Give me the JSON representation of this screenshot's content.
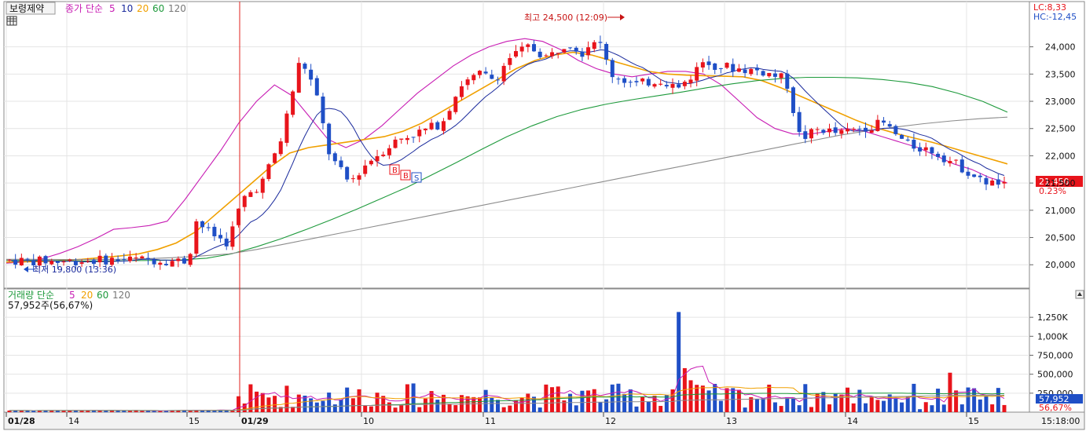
{
  "header": {
    "stock_name": "보령제약",
    "price_indicator_label": "종가 단순",
    "ma_periods": [
      "5",
      "10",
      "20",
      "60",
      "120"
    ],
    "lc_label": "LC:8,33",
    "hc_label": "HC:-12,45"
  },
  "price_panel": {
    "high_annotation": "최고 24,500 (12:09)",
    "low_annotation": "최저 19,800 (13:36)",
    "current_price": "21,450",
    "current_change": "0.23%",
    "buy_marker": "B",
    "sell_marker": "S",
    "y_ticks": [
      "24,000",
      "23,500",
      "23,000",
      "22,500",
      "22,000",
      "21,500",
      "21,000",
      "20,500",
      "20,000"
    ]
  },
  "volume_panel": {
    "indicator_label": "거래량 단순",
    "ma_periods": [
      "5",
      "20",
      "60",
      "120"
    ],
    "current_volume_text": "57,952주(56,67%)",
    "current_volume": "57,952",
    "current_pct": "56,67%",
    "y_ticks": [
      "1,250,000",
      "1,000,000",
      "750,000",
      "500,000",
      "250,000"
    ]
  },
  "x_axis": {
    "labels": [
      "01/28",
      "14",
      "15",
      "01/29",
      "10",
      "11",
      "12",
      "13",
      "14",
      "15"
    ],
    "time_readout": "15:18:00"
  },
  "colors": {
    "up": "#e8141b",
    "down": "#1f4fc6",
    "ma5": "#c81eb4",
    "ma10": "#1a2a9c",
    "ma20": "#f0a000",
    "ma60": "#1e9a3c",
    "ma120": "#8c8c8c",
    "divider": "#e0201e"
  },
  "chart_data": {
    "type": "candlestick",
    "price_axis": {
      "ylim": [
        19600,
        24600
      ]
    },
    "volume_axis": {
      "ylim": [
        0,
        1500000
      ]
    },
    "session_breaks": [
      "01/29"
    ],
    "ohlc_series_count": 166,
    "ma_lines": [
      {
        "name": "5",
        "values": [
          20030,
          20050,
          20110,
          20210,
          20330,
          20480,
          20650,
          20680,
          20720,
          20800,
          21200,
          21650,
          22100,
          22600,
          23000,
          23300,
          23100,
          22700,
          22300,
          22150,
          22300,
          22550,
          22850,
          23150,
          23400,
          23650,
          23850,
          24000,
          24100,
          24150,
          24100,
          23950,
          23750,
          23600,
          23500,
          23450,
          23500,
          23550,
          23550,
          23500,
          23300,
          23000,
          22700,
          22500,
          22400,
          22400,
          22450,
          22500,
          22450,
          22350,
          22250,
          22150,
          22000,
          21850,
          21750,
          21600,
          21500
        ]
      },
      {
        "name": "20",
        "values": [
          20050,
          20055,
          20060,
          20080,
          20100,
          20130,
          20160,
          20200,
          20280,
          20400,
          20600,
          20900,
          21200,
          21500,
          21800,
          22050,
          22150,
          22200,
          22250,
          22300,
          22350,
          22450,
          22600,
          22800,
          23000,
          23200,
          23400,
          23600,
          23750,
          23850,
          23900,
          23850,
          23750,
          23650,
          23550,
          23500,
          23480,
          23470,
          23460,
          23450,
          23380,
          23250,
          23100,
          22950,
          22800,
          22650,
          22520,
          22420,
          22330,
          22250,
          22150,
          22050,
          21950,
          21850
        ]
      },
      {
        "name": "60",
        "values": [
          20080,
          20080,
          20075,
          20070,
          20070,
          20075,
          20080,
          20090,
          20120,
          20200,
          20330,
          20480,
          20650,
          20830,
          21020,
          21220,
          21420,
          21650,
          21880,
          22120,
          22350,
          22550,
          22720,
          22850,
          22950,
          23030,
          23100,
          23170,
          23250,
          23320,
          23380,
          23420,
          23440,
          23440,
          23430,
          23400,
          23350,
          23270,
          23150,
          23000,
          22800
        ]
      },
      {
        "name": "120",
        "values": [
          20100,
          20100,
          20095,
          20095,
          20100,
          20110,
          20130,
          20160,
          20200,
          20280,
          20380,
          20480,
          20580,
          20680,
          20780,
          20880,
          20980,
          21080,
          21180,
          21280,
          21380,
          21480,
          21580,
          21680,
          21780,
          21880,
          21980,
          22080,
          22180,
          22280,
          22380,
          22460,
          22530,
          22590,
          22640,
          22680,
          22710
        ]
      }
    ],
    "volume_ma_lines": [
      {
        "name": "5"
      },
      {
        "name": "20"
      },
      {
        "name": "60"
      },
      {
        "name": "120"
      }
    ]
  }
}
